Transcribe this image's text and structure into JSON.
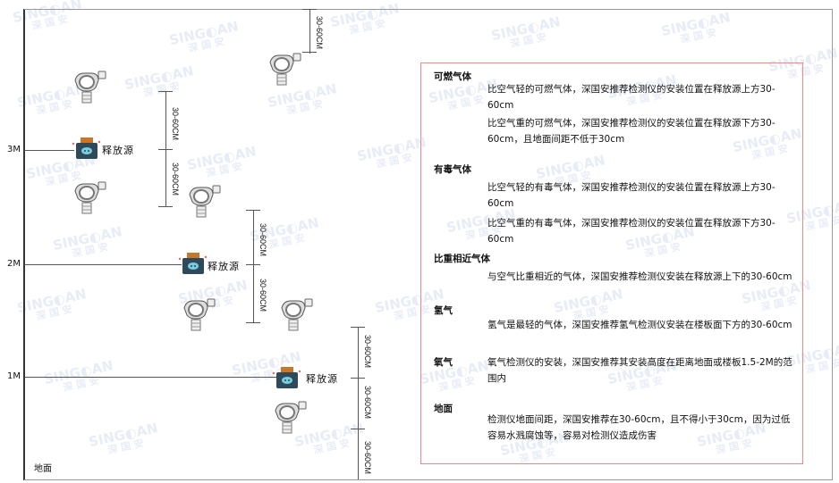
{
  "watermark": "SINGOAN 深国安",
  "levels": {
    "m3": "3M",
    "m2": "2M",
    "m1": "1M",
    "ground": "地面"
  },
  "source_label": "释放源",
  "dim_label": "30-60CM",
  "panel": {
    "sections": [
      {
        "title": "可燃气体",
        "paras": [
          "比空气轻的可燃气体，深国安推荐检测仪的安装位置在释放源上方30-60cm",
          "比空气重的可燃气体，深国安推荐检测仪的安装位置在释放源下方30-60cm，且地面间距不低于30cm"
        ]
      },
      {
        "title": "有毒气体",
        "paras": [
          "比空气轻的有毒气体，深国安推荐检测仪的安装位置在释放源上方30-60cm",
          "比空气重的有毒气体，深国安推荐检测仪的安装位置在释放源下方30-60cm"
        ]
      },
      {
        "title": "比重相近气体",
        "paras": [
          "与空气比重相近的气体，深国安推荐检测仪安装在释放源上下的30-60cm"
        ]
      },
      {
        "title": "氢气",
        "paras": [
          "氢气是最轻的气体，深国安推荐氢气检测仪安装在楼板面下方的30-60cm"
        ]
      },
      {
        "title": "氧气",
        "paras": [
          "氧气检测仪的安装，深国安推荐其安装高度在距离地面或楼板1.5-2M的范围内"
        ]
      },
      {
        "title": "地面",
        "paras": [
          "检测仪地面间距，深国安推荐在30-60cm，且不得小于30cm，因为过低容易水溅腐蚀等，容易对检测仪造成伤害"
        ]
      }
    ]
  },
  "colors": {
    "panel_border": "#e88888",
    "source_body": "#2e4a5a",
    "source_cap": "#c8762a"
  }
}
